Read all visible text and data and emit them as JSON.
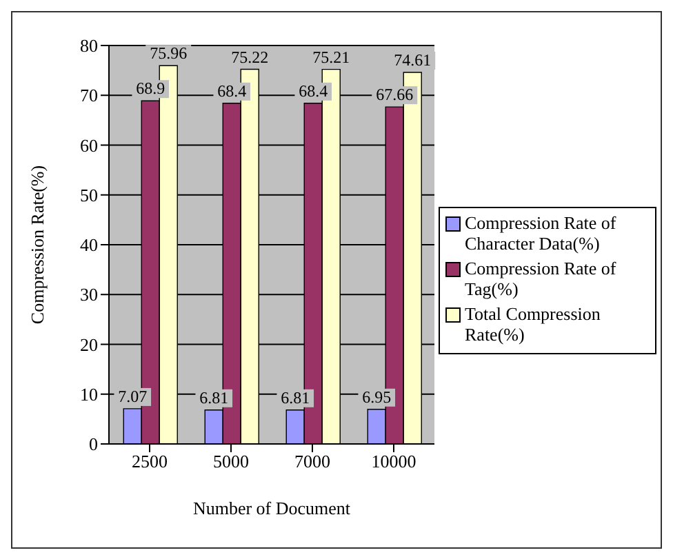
{
  "chart_data": {
    "type": "bar",
    "xlabel": "Number of Document",
    "ylabel": "Compression Rate(%)",
    "categories": [
      "2500",
      "5000",
      "7000",
      "10000"
    ],
    "series": [
      {
        "name": "Compression Rate of Character Data(%)",
        "color": "#9999ff",
        "values": [
          7.07,
          6.81,
          6.81,
          6.95
        ]
      },
      {
        "name": "Compression Rate of Tag(%)",
        "color": "#993366",
        "values": [
          68.9,
          68.4,
          68.4,
          67.66
        ]
      },
      {
        "name": "Total Compression Rate(%)",
        "color": "#ffffcc",
        "values": [
          75.96,
          75.22,
          75.21,
          74.61
        ]
      }
    ],
    "ylim": [
      0,
      80
    ],
    "yticks": [
      0,
      10,
      20,
      30,
      40,
      50,
      60,
      70,
      80
    ],
    "grid": "y",
    "legend": "right",
    "data_labels": true
  }
}
